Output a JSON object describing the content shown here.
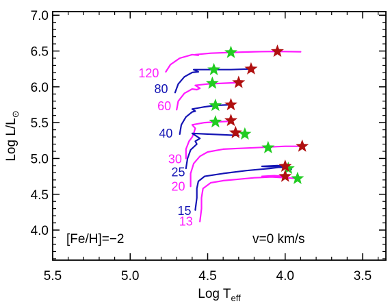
{
  "chart_data": {
    "type": "line",
    "xlabel_main": "Log T",
    "xlabel_sub": "eff",
    "ylabel_main": "Log L/L",
    "ylabel_symbol": "⊙",
    "xlim": [
      5.5,
      3.35
    ],
    "ylim": [
      3.58,
      7.05
    ],
    "x_ticks": [
      "5.5",
      "5.0",
      "4.5",
      "4.0",
      "3.5"
    ],
    "x_tick_values": [
      5.5,
      5.0,
      4.5,
      4.0,
      3.5
    ],
    "y_ticks": [
      "4.0",
      "4.5",
      "5.0",
      "5.5",
      "6.0",
      "6.5",
      "7.0"
    ],
    "y_tick_values": [
      4.0,
      4.5,
      5.0,
      5.5,
      6.0,
      6.5,
      7.0
    ],
    "annotations": {
      "metallicity": "[Fe/H]=−2",
      "rotation": "v=0 km/s"
    },
    "colors": {
      "magenta": "#ff1aff",
      "blue": "#1414b4",
      "star_green": "#22cc22",
      "star_red": "#b01010"
    },
    "series": [
      {
        "name": "120",
        "color": "magenta",
        "label_at": [
          4.88,
          6.19
        ],
        "points": [
          [
            4.77,
            6.21
          ],
          [
            4.74,
            6.31
          ],
          [
            4.68,
            6.4
          ],
          [
            4.6,
            6.45
          ],
          [
            4.56,
            6.44
          ],
          [
            4.58,
            6.45
          ],
          [
            4.48,
            6.47
          ],
          [
            4.35,
            6.48
          ],
          [
            4.2,
            6.49
          ],
          [
            4.05,
            6.495
          ],
          [
            3.9,
            6.49
          ]
        ],
        "green_star": [
          4.35,
          6.48
        ],
        "red_star": [
          4.05,
          6.495
        ]
      },
      {
        "name": "80",
        "color": "blue",
        "label_at": [
          4.8,
          5.97
        ],
        "points": [
          [
            4.71,
            5.92
          ],
          [
            4.69,
            6.04
          ],
          [
            4.65,
            6.14
          ],
          [
            4.6,
            6.2
          ],
          [
            4.56,
            6.21
          ],
          [
            4.59,
            6.24
          ],
          [
            4.5,
            6.24
          ],
          [
            4.45,
            6.24
          ],
          [
            4.35,
            6.24
          ],
          [
            4.22,
            6.25
          ]
        ],
        "green_star": [
          4.46,
          6.24
        ],
        "red_star": [
          4.22,
          6.25
        ]
      },
      {
        "name": "60",
        "color": "magenta",
        "label_at": [
          4.78,
          5.73
        ],
        "points": [
          [
            4.7,
            5.68
          ],
          [
            4.69,
            5.8
          ],
          [
            4.65,
            5.91
          ],
          [
            4.6,
            5.97
          ],
          [
            4.57,
            5.96
          ],
          [
            4.55,
            5.98
          ],
          [
            4.58,
            6.02
          ],
          [
            4.5,
            6.04
          ],
          [
            4.4,
            6.05
          ],
          [
            4.3,
            6.06
          ]
        ],
        "green_star": [
          4.47,
          6.05
        ],
        "red_star": [
          4.3,
          6.06
        ]
      },
      {
        "name": "40",
        "color": "blue",
        "label_at": [
          4.77,
          5.35
        ],
        "points": [
          [
            4.68,
            5.34
          ],
          [
            4.67,
            5.47
          ],
          [
            4.64,
            5.58
          ],
          [
            4.6,
            5.65
          ],
          [
            4.58,
            5.66
          ],
          [
            4.6,
            5.69
          ],
          [
            4.52,
            5.72
          ],
          [
            4.45,
            5.74
          ],
          [
            4.35,
            5.75
          ]
        ],
        "green_star": [
          4.45,
          5.74
        ],
        "red_star": [
          4.35,
          5.75
        ]
      },
      {
        "name": "30",
        "color": "magenta",
        "label_at": [
          4.71,
          4.99
        ],
        "points": [
          [
            4.64,
            5.0
          ],
          [
            4.64,
            5.13
          ],
          [
            4.62,
            5.24
          ],
          [
            4.6,
            5.3
          ],
          [
            4.59,
            5.35
          ],
          [
            4.58,
            5.42
          ],
          [
            4.6,
            5.47
          ],
          [
            4.52,
            5.5
          ],
          [
            4.45,
            5.51
          ],
          [
            4.35,
            5.52
          ]
        ],
        "green_star": [
          4.45,
          5.51
        ],
        "red_star": [
          4.35,
          5.53
        ]
      },
      {
        "name": "25",
        "color": "blue",
        "label_at": [
          4.69,
          4.81
        ],
        "points": [
          [
            4.64,
            4.86
          ],
          [
            4.63,
            5.0
          ],
          [
            4.61,
            5.12
          ],
          [
            4.57,
            5.2
          ],
          [
            4.58,
            5.24
          ],
          [
            4.55,
            5.28
          ],
          [
            4.6,
            5.35
          ],
          [
            4.5,
            5.34
          ],
          [
            4.4,
            5.33
          ],
          [
            4.3,
            5.32
          ]
        ],
        "green_star": [
          4.26,
          5.34
        ],
        "red_star": [
          4.32,
          5.36
        ]
      },
      {
        "name": "20",
        "color": "magenta",
        "label_at": [
          4.69,
          4.61
        ],
        "points": [
          [
            4.61,
            4.61
          ],
          [
            4.61,
            4.79
          ],
          [
            4.59,
            4.93
          ],
          [
            4.55,
            5.03
          ],
          [
            4.5,
            5.09
          ],
          [
            4.4,
            5.13
          ],
          [
            4.3,
            5.14
          ],
          [
            4.2,
            5.15
          ],
          [
            4.1,
            5.16
          ],
          [
            4.0,
            5.17
          ],
          [
            3.9,
            5.17
          ]
        ],
        "green_star": [
          4.11,
          5.15
        ],
        "red_star": [
          3.89,
          5.17
        ]
      },
      {
        "name": "15",
        "color": "blue",
        "label_at": [
          4.65,
          4.27
        ],
        "points": [
          [
            4.58,
            4.28
          ],
          [
            4.57,
            4.45
          ],
          [
            4.57,
            4.58
          ],
          [
            4.56,
            4.68
          ],
          [
            4.52,
            4.75
          ],
          [
            4.4,
            4.79
          ],
          [
            4.25,
            4.83
          ],
          [
            4.1,
            4.86
          ],
          [
            4.0,
            4.89
          ],
          [
            4.05,
            4.9
          ],
          [
            4.15,
            4.89
          ],
          [
            4.05,
            4.88
          ],
          [
            3.98,
            4.87
          ],
          [
            3.96,
            4.85
          ]
        ],
        "green_star": [
          3.98,
          4.86
        ],
        "red_star": [
          4.0,
          4.89
        ]
      },
      {
        "name": "13",
        "color": "magenta",
        "label_at": [
          4.64,
          4.12
        ],
        "points": [
          [
            4.55,
            4.12
          ],
          [
            4.54,
            4.3
          ],
          [
            4.54,
            4.45
          ],
          [
            4.53,
            4.58
          ],
          [
            4.48,
            4.66
          ],
          [
            4.4,
            4.69
          ],
          [
            4.3,
            4.71
          ],
          [
            4.2,
            4.73
          ],
          [
            4.1,
            4.74
          ],
          [
            4.0,
            4.75
          ],
          [
            4.07,
            4.76
          ],
          [
            4.15,
            4.75
          ],
          [
            4.08,
            4.74
          ],
          [
            4.0,
            4.73
          ],
          [
            3.92,
            4.72
          ]
        ],
        "green_star": [
          3.92,
          4.72
        ],
        "red_star": [
          4.0,
          4.75
        ]
      }
    ]
  }
}
